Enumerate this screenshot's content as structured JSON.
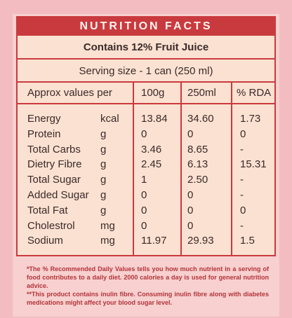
{
  "title": "NUTRITION FACTS",
  "subtitle": "Contains 12% Fruit Juice",
  "serving": "Serving size - 1 can (250 ml)",
  "headers": {
    "label": "Approx values per",
    "col_100g": "100g",
    "col_250ml": "250ml",
    "col_rda": "% RDA"
  },
  "rows": [
    {
      "name": "Energy",
      "unit": "kcal",
      "per100": "13.84",
      "per250": "34.60",
      "rda": "1.73"
    },
    {
      "name": "Protein",
      "unit": "g",
      "per100": "0",
      "per250": "0",
      "rda": "0"
    },
    {
      "name": "Total Carbs",
      "unit": "g",
      "per100": "3.46",
      "per250": "8.65",
      "rda": "-"
    },
    {
      "name": "Dietry Fibre",
      "unit": "g",
      "per100": "2.45",
      "per250": "6.13",
      "rda": "15.31"
    },
    {
      "name": "Total Sugar",
      "unit": "g",
      "per100": "1",
      "per250": "2.50",
      "rda": "-"
    },
    {
      "name": "Added Sugar",
      "unit": "g",
      "per100": "0",
      "per250": "0",
      "rda": "-"
    },
    {
      "name": "Total Fat",
      "unit": "g",
      "per100": "0",
      "per250": "0",
      "rda": "0"
    },
    {
      "name": "Cholestrol",
      "unit": "mg",
      "per100": "0",
      "per250": "0",
      "rda": "-"
    },
    {
      "name": "Sodium",
      "unit": "mg",
      "per100": "11.97",
      "per250": "29.93",
      "rda": "1.5"
    }
  ],
  "footnotes": [
    "*The % Recommended Daily Values tells you how much nutrient in a serving of food contributes to a daily diet. 2000 calories a day is used for general nutrition advice.",
    "**This product contains inulin fibre. Consuming inulin fibre along with diabetes medications might affect your blood sugar level."
  ],
  "colors": {
    "accent": "#c93a3f",
    "panel": "#fbe1d1",
    "background": "#f2bcc0",
    "footnote": "#b3333a"
  }
}
